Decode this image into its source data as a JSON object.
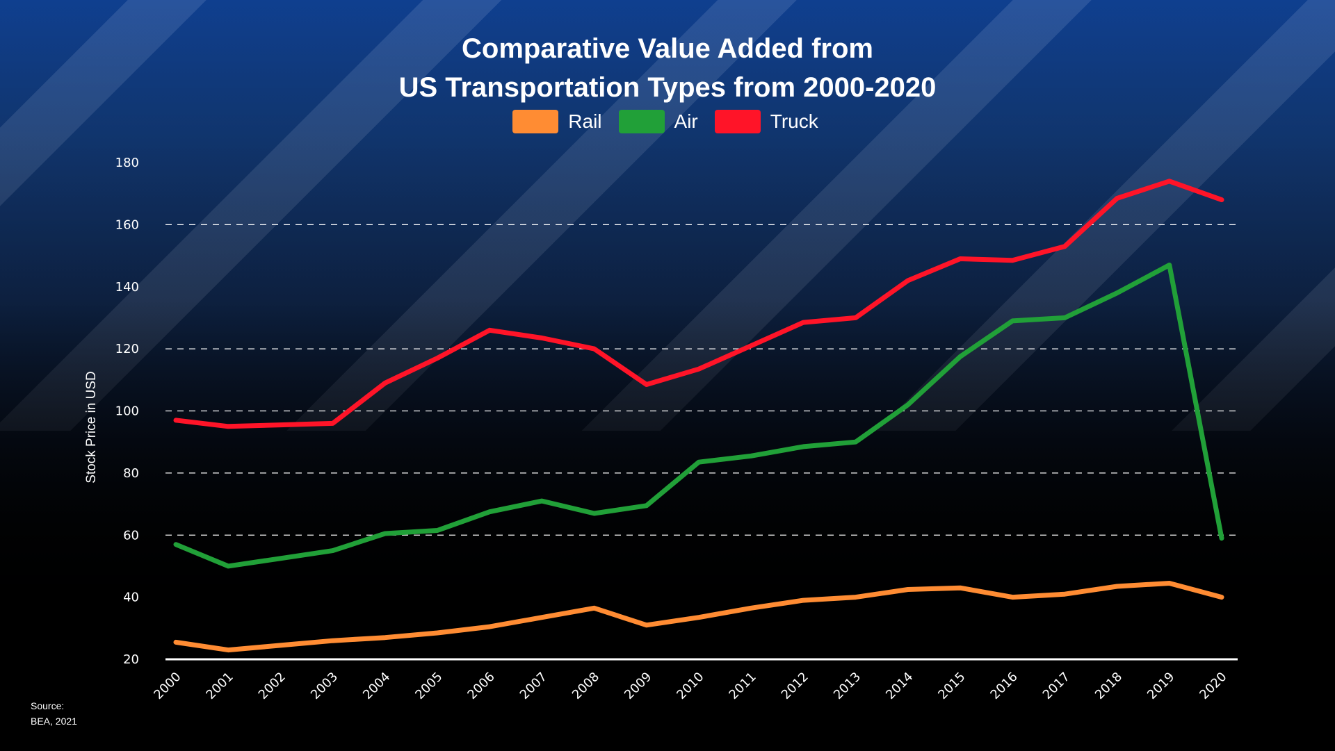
{
  "chart_data": {
    "type": "line",
    "title": "Comparative Value Added from US Transportation Types from 2000-2020",
    "title_lines": [
      "Comparative Value Added from",
      "US Transportation Types from 2000-2020"
    ],
    "xlabel": "",
    "ylabel": "Stock Price in USD",
    "ylim": [
      20,
      180
    ],
    "yticks": [
      20,
      40,
      60,
      80,
      100,
      120,
      140,
      160,
      180
    ],
    "grid": "dashed horizontal at 60, 80, 100, 120, 160",
    "legend_position": "top-center",
    "x": [
      "2000",
      "2001",
      "2002",
      "2003",
      "2004",
      "2005",
      "2006",
      "2007",
      "2008",
      "2009",
      "2010",
      "2011",
      "2012",
      "2013",
      "2014",
      "2015",
      "2016",
      "2017",
      "2018",
      "2019",
      "2020"
    ],
    "series": [
      {
        "name": "Rail",
        "color": "#ff8c33",
        "values": [
          25.5,
          23,
          24.5,
          26,
          27,
          28.5,
          30.5,
          33.5,
          36.5,
          31,
          33.5,
          36.5,
          39,
          40,
          42.5,
          43,
          40,
          41,
          43.5,
          44.5,
          40
        ]
      },
      {
        "name": "Air",
        "color": "#21a038",
        "values": [
          57,
          50,
          52.5,
          55,
          60.5,
          61.5,
          67.5,
          71,
          67,
          69.5,
          83.5,
          85.5,
          88.5,
          90,
          102,
          117.5,
          129,
          130,
          138,
          147,
          59
        ]
      },
      {
        "name": "Truck",
        "color": "#ff1428",
        "values": [
          97,
          95,
          95.5,
          96,
          109,
          117,
          126,
          123.5,
          120,
          108.5,
          113.5,
          121,
          128.5,
          130,
          142,
          149,
          148.5,
          153,
          168.5,
          174,
          168
        ]
      }
    ],
    "source_label": "Source:",
    "source_text": "BEA, 2021"
  }
}
